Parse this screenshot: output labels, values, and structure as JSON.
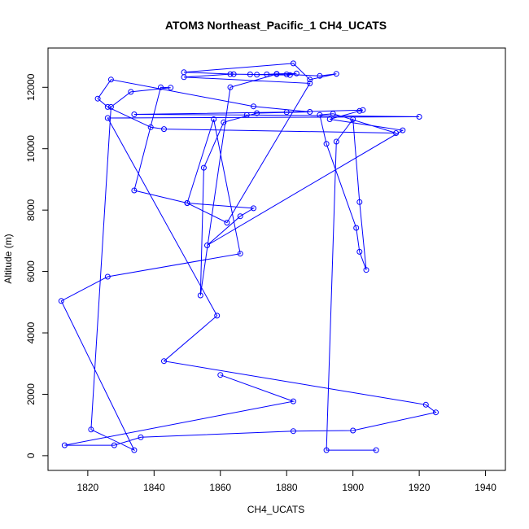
{
  "chart_data": {
    "type": "line",
    "title": "ATOM3 Northeast_Pacific_1 CH4_UCATS",
    "xlabel": "CH4_UCATS",
    "ylabel": "Altitude (m)",
    "xlim": [
      1808,
      1946
    ],
    "ylim": [
      -480,
      13280
    ],
    "xticks": [
      1820,
      1840,
      1860,
      1880,
      1900,
      1920,
      1940
    ],
    "yticks": [
      0,
      2000,
      4000,
      6000,
      8000,
      10000,
      12000
    ],
    "grid": false,
    "series": [
      {
        "color": "#0000ff",
        "marker": "open-circle",
        "x": [
          1907,
          1892,
          1895,
          1900,
          1902,
          1904,
          1902,
          1901,
          1892,
          1890,
          1894,
          1913,
          1843,
          1839,
          1826,
          1823,
          1827,
          1870,
          1887,
          1871,
          1861,
          1855,
          1854,
          1863,
          1877,
          1881,
          1864,
          1849,
          1882,
          1887,
          1895,
          1890,
          1880,
          1883,
          1877,
          1874,
          1871,
          1869,
          1863,
          1849,
          1887,
          1862,
          1850,
          1858,
          1866,
          1826,
          1812,
          1834,
          1821,
          1827,
          1833,
          1845,
          1842,
          1834,
          1850,
          1870,
          1866,
          1856,
          1915,
          1893,
          1902,
          1903,
          1880,
          1834,
          1868,
          1920,
          1826,
          1859,
          1843,
          1922,
          1925,
          1900,
          1882,
          1836,
          1828,
          1813,
          1882,
          1860
        ],
        "y": [
          180,
          180,
          10230,
          10960,
          8260,
          6050,
          6640,
          7420,
          10160,
          11100,
          11140,
          10510,
          10640,
          10700,
          11360,
          11630,
          12250,
          11380,
          11200,
          11160,
          10860,
          9380,
          5220,
          12000,
          12430,
          12400,
          12430,
          12490,
          12780,
          12250,
          12440,
          12370,
          12420,
          12450,
          12440,
          12420,
          12410,
          12420,
          12430,
          12330,
          12130,
          7590,
          8230,
          10960,
          6580,
          5830,
          5040,
          180,
          850,
          11360,
          11850,
          11990,
          12000,
          8640,
          8230,
          8060,
          7800,
          6850,
          10600,
          10960,
          11230,
          11260,
          11190,
          11120,
          11100,
          11040,
          11000,
          4560,
          3080,
          1660,
          1410,
          820,
          800,
          600,
          340,
          340,
          1770,
          2630
        ]
      }
    ]
  }
}
